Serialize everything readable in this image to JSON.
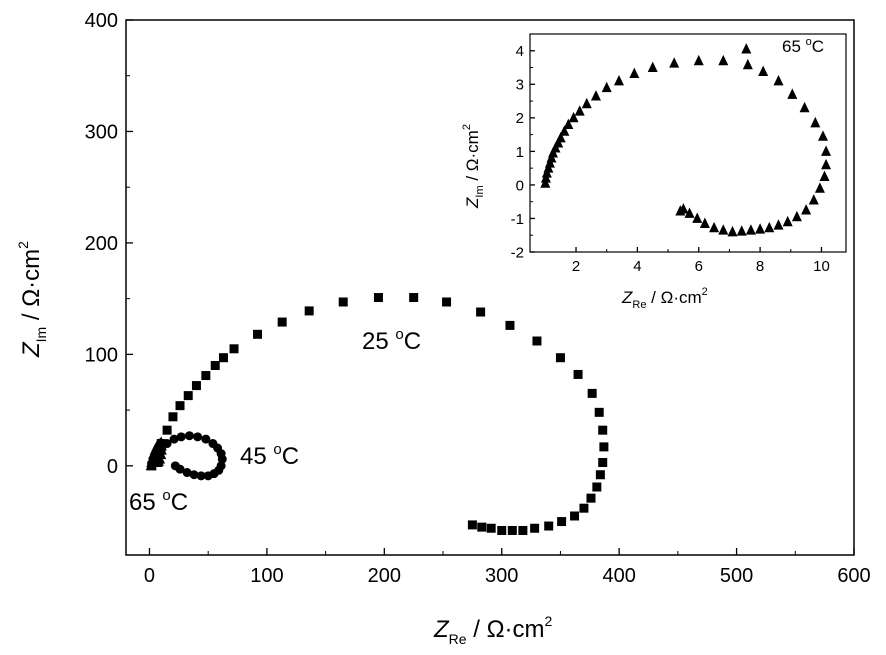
{
  "chart_data": [
    {
      "type": "scatter",
      "id": "main",
      "xlabel": {
        "sym": "Z",
        "sub": "Re",
        "unit": " / Ω·cm",
        "sup": "2"
      },
      "ylabel": {
        "sym": "Z",
        "sub": "Im",
        "unit": " / Ω·cm",
        "sup": "2"
      },
      "xlim": [
        -20,
        600
      ],
      "ylim": [
        -80,
        400
      ],
      "xticks": [
        0,
        100,
        200,
        300,
        400,
        500,
        600
      ],
      "yticks": [
        0,
        100,
        200,
        300,
        400
      ],
      "annotations": [
        {
          "base": "25 ",
          "sup": "o",
          "tail": "C"
        },
        {
          "base": "45 ",
          "sup": "o",
          "tail": "C"
        },
        {
          "base": "65 ",
          "sup": "o",
          "tail": "C"
        }
      ],
      "series": [
        {
          "marker": "square",
          "points": [
            [
              2,
              0
            ],
            [
              6,
              10
            ],
            [
              10,
              20
            ],
            [
              15,
              32
            ],
            [
              20,
              44
            ],
            [
              26,
              54
            ],
            [
              33,
              63
            ],
            [
              40,
              72
            ],
            [
              48,
              81
            ],
            [
              56,
              90
            ],
            [
              63,
              97
            ],
            [
              72,
              105
            ],
            [
              92,
              118
            ],
            [
              113,
              129
            ],
            [
              136,
              139
            ],
            [
              165,
              147
            ],
            [
              195,
              151
            ],
            [
              225,
              151
            ],
            [
              253,
              147
            ],
            [
              282,
              138
            ],
            [
              307,
              126
            ],
            [
              330,
              112
            ],
            [
              350,
              97
            ],
            [
              365,
              82
            ],
            [
              377,
              65
            ],
            [
              383,
              48
            ],
            [
              386,
              32
            ],
            [
              387,
              17
            ],
            [
              386,
              3
            ],
            [
              384,
              -8
            ],
            [
              381,
              -19
            ],
            [
              376,
              -29
            ],
            [
              370,
              -38
            ],
            [
              362,
              -45
            ],
            [
              351,
              -50
            ],
            [
              340,
              -54
            ],
            [
              328,
              -56
            ],
            [
              318,
              -58
            ],
            [
              309,
              -58
            ],
            [
              300,
              -58
            ],
            [
              291,
              -56
            ],
            [
              283,
              -55
            ],
            [
              275,
              -53
            ]
          ]
        },
        {
          "marker": "circle",
          "points": [
            [
              2,
              1
            ],
            [
              6,
              8
            ],
            [
              10,
              14
            ],
            [
              15,
              20
            ],
            [
              21,
              24
            ],
            [
              27,
              26
            ],
            [
              34,
              27
            ],
            [
              41,
              26
            ],
            [
              48,
              24
            ],
            [
              54,
              20
            ],
            [
              58,
              16
            ],
            [
              61,
              11
            ],
            [
              62,
              6
            ],
            [
              61,
              0
            ],
            [
              59,
              -4
            ],
            [
              55,
              -7
            ],
            [
              50,
              -9
            ],
            [
              44,
              -9
            ],
            [
              38,
              -8
            ],
            [
              32,
              -6
            ],
            [
              26,
              -3
            ],
            [
              22,
              0
            ]
          ]
        },
        {
          "marker": "triangle",
          "points": [
            [
              1,
              0
            ],
            [
              1.5,
              3
            ],
            [
              2,
              6
            ],
            [
              3,
              10
            ],
            [
              4.5,
              14
            ],
            [
              6,
              17
            ],
            [
              8,
              19
            ],
            [
              9,
              20
            ],
            [
              10,
              21
            ],
            [
              10.5,
              18
            ],
            [
              10.5,
              14
            ],
            [
              10,
              10
            ],
            [
              9,
              6
            ],
            [
              8,
              4
            ],
            [
              7,
              3
            ]
          ]
        }
      ]
    },
    {
      "type": "scatter",
      "id": "inset",
      "xlabel": {
        "sym": "Z",
        "sub": "Re",
        "unit": " / Ω·cm",
        "sup": "2"
      },
      "ylabel": {
        "sym": "Z",
        "sub": "Im",
        "unit": " / Ω·cm",
        "sup": "2"
      },
      "xlim": [
        0.5,
        10.8
      ],
      "ylim": [
        -2,
        4.5
      ],
      "xticks": [
        2,
        4,
        6,
        8,
        10
      ],
      "yticks": [
        -2,
        -1,
        0,
        1,
        2,
        3,
        4
      ],
      "annotations": [
        {
          "base": "65 ",
          "sup": "o",
          "tail": "C"
        }
      ],
      "series": [
        {
          "marker": "triangle",
          "points": [
            [
              1.0,
              0.05
            ],
            [
              1.02,
              0.2
            ],
            [
              1.05,
              0.35
            ],
            [
              1.1,
              0.5
            ],
            [
              1.15,
              0.65
            ],
            [
              1.2,
              0.8
            ],
            [
              1.25,
              0.95
            ],
            [
              1.33,
              1.1
            ],
            [
              1.42,
              1.25
            ],
            [
              1.5,
              1.4
            ],
            [
              1.62,
              1.6
            ],
            [
              1.75,
              1.8
            ],
            [
              1.92,
              2.0
            ],
            [
              2.12,
              2.2
            ],
            [
              2.35,
              2.42
            ],
            [
              2.65,
              2.65
            ],
            [
              3.0,
              2.9
            ],
            [
              3.4,
              3.1
            ],
            [
              3.9,
              3.32
            ],
            [
              4.5,
              3.5
            ],
            [
              5.2,
              3.63
            ],
            [
              6.0,
              3.7
            ],
            [
              6.8,
              3.7
            ],
            [
              7.55,
              4.05
            ],
            [
              7.6,
              3.58
            ],
            [
              8.1,
              3.38
            ],
            [
              8.6,
              3.1
            ],
            [
              9.05,
              2.7
            ],
            [
              9.45,
              2.3
            ],
            [
              9.8,
              1.85
            ],
            [
              10.05,
              1.45
            ],
            [
              10.15,
              1.0
            ],
            [
              10.15,
              0.6
            ],
            [
              10.1,
              0.25
            ],
            [
              9.95,
              -0.1
            ],
            [
              9.75,
              -0.45
            ],
            [
              9.5,
              -0.75
            ],
            [
              9.2,
              -0.95
            ],
            [
              8.9,
              -1.1
            ],
            [
              8.6,
              -1.2
            ],
            [
              8.3,
              -1.28
            ],
            [
              8.0,
              -1.32
            ],
            [
              7.7,
              -1.35
            ],
            [
              7.4,
              -1.38
            ],
            [
              7.1,
              -1.4
            ],
            [
              6.8,
              -1.35
            ],
            [
              6.5,
              -1.28
            ],
            [
              6.2,
              -1.15
            ],
            [
              5.95,
              -1.0
            ],
            [
              5.7,
              -0.85
            ],
            [
              5.5,
              -0.72
            ],
            [
              5.4,
              -0.78
            ]
          ]
        }
      ]
    }
  ]
}
